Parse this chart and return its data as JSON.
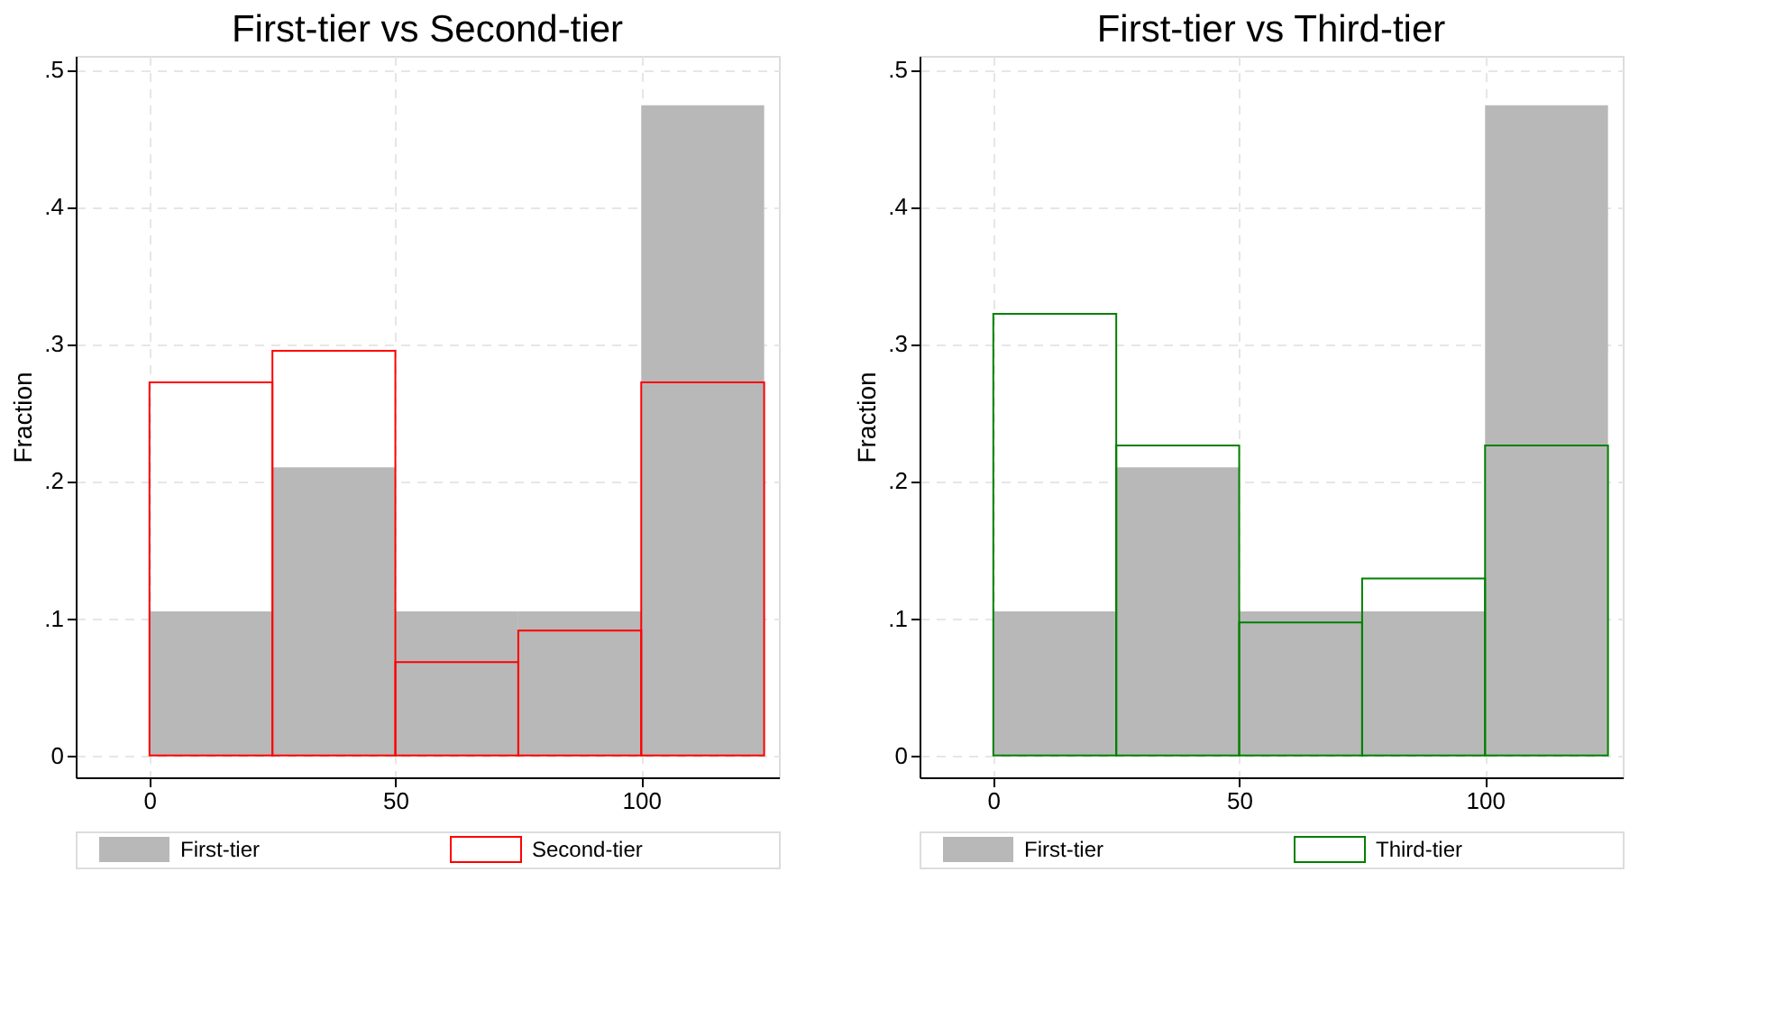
{
  "chart_data": [
    {
      "type": "histogram",
      "title": "First-tier vs Second-tier",
      "ylabel": "Fraction",
      "bins": [
        0,
        25,
        50,
        75,
        100,
        125
      ],
      "series": [
        {
          "name": "First-tier",
          "color": "#b8b8b8",
          "values": [
            0.105,
            0.21,
            0.105,
            0.105,
            0.474
          ]
        },
        {
          "name": "Second-tier",
          "color": "#ff0000",
          "values": [
            0.272,
            0.295,
            0.068,
            0.091,
            0.272
          ]
        }
      ],
      "xlim": [
        -15,
        128
      ],
      "ylim": [
        -0.016,
        0.51
      ],
      "xticks": [
        0,
        50,
        100
      ],
      "yticks": [
        {
          "value": 0,
          "label": "0"
        },
        {
          "value": 0.1,
          "label": ".1"
        },
        {
          "value": 0.2,
          "label": ".2"
        },
        {
          "value": 0.3,
          "label": ".3"
        },
        {
          "value": 0.4,
          "label": ".4"
        },
        {
          "value": 0.5,
          "label": ".5"
        }
      ],
      "grid": true,
      "legend": "bottom"
    },
    {
      "type": "histogram",
      "title": "First-tier vs Third-tier",
      "ylabel": "Fraction",
      "bins": [
        0,
        25,
        50,
        75,
        100,
        125
      ],
      "series": [
        {
          "name": "First-tier",
          "color": "#b8b8b8",
          "values": [
            0.105,
            0.21,
            0.105,
            0.105,
            0.474
          ]
        },
        {
          "name": "Third-tier",
          "color": "#008000",
          "values": [
            0.322,
            0.226,
            0.097,
            0.129,
            0.226
          ]
        }
      ],
      "xlim": [
        -15,
        128
      ],
      "ylim": [
        -0.016,
        0.51
      ],
      "xticks": [
        0,
        50,
        100
      ],
      "yticks": [
        {
          "value": 0,
          "label": "0"
        },
        {
          "value": 0.1,
          "label": ".1"
        },
        {
          "value": 0.2,
          "label": ".2"
        },
        {
          "value": 0.3,
          "label": ".3"
        },
        {
          "value": 0.4,
          "label": ".4"
        },
        {
          "value": 0.5,
          "label": ".5"
        }
      ],
      "grid": true,
      "legend": "bottom"
    }
  ]
}
